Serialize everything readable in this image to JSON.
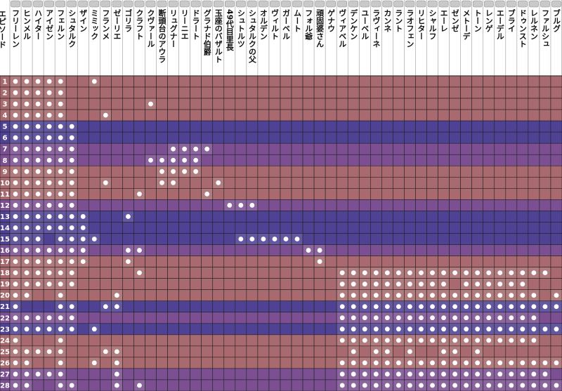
{
  "chart_data": {
    "type": "heatmap",
    "row_header": "エピソード",
    "characters": [
      "フリーレン",
      "ヒンメル",
      "ハイター",
      "アイゼン",
      "フェルン",
      "シュタルク",
      "ザイン",
      "ミミック",
      "フランメ",
      "ゼーリエ",
      "ゴリラ",
      "クラフト",
      "クヴァール",
      "断頭台のアウラ",
      "リュグナー",
      "リーニエ",
      "ドラート",
      "グラナド伯爵",
      "玉座のバザルト",
      "49代目里長",
      "シュトルツ",
      "シュタルクの父",
      "オルデン",
      "ヴィルト",
      "ガーベル",
      "ムート",
      "フォル爺",
      "頑固婆さん",
      "ゲナウ",
      "ヴィアベル",
      "デンケン",
      "ユーベル",
      "ラヴィーネ",
      "カンネ",
      "ラント",
      "ラオフェン",
      "リヒター",
      "シャルフ",
      "エーレ",
      "ゼンゼ",
      "メトーデ",
      "トーン",
      "レンゲ",
      "エーデル",
      "ブライ",
      "ドゥンスト",
      "レルネン",
      "ファルシュ",
      "ブルグ"
    ],
    "episodes": [
      "1",
      "2",
      "3",
      "4",
      "5",
      "6",
      "7",
      "8",
      "9",
      "10",
      "11",
      "12",
      "13",
      "14",
      "15",
      "16",
      "17",
      "18",
      "19",
      "20",
      "21",
      "22",
      "23",
      "24",
      "25",
      "26",
      "27",
      "28"
    ],
    "appearances": [
      [
        0,
        1,
        2,
        3,
        4,
        7
      ],
      [
        0,
        1,
        2,
        3,
        4
      ],
      [
        0,
        1,
        2,
        3,
        4,
        12
      ],
      [
        0,
        1,
        2,
        3,
        4,
        8
      ],
      [
        0,
        1,
        2,
        3,
        4,
        5
      ],
      [
        0,
        1,
        2,
        3,
        4,
        5
      ],
      [
        0,
        1,
        2,
        3,
        4,
        5,
        14,
        15,
        16,
        17
      ],
      [
        0,
        1,
        2,
        3,
        4,
        5,
        12,
        13,
        14,
        15,
        16
      ],
      [
        0,
        1,
        2,
        3,
        4,
        5,
        13,
        14,
        15,
        16
      ],
      [
        0,
        1,
        2,
        3,
        4,
        5,
        8,
        13,
        14,
        18
      ],
      [
        0,
        1,
        2,
        3,
        4,
        5,
        11,
        17
      ],
      [
        0,
        1,
        2,
        3,
        4,
        5,
        19,
        20,
        21
      ],
      [
        0,
        1,
        2,
        3,
        4,
        5,
        6,
        10
      ],
      [
        0,
        1,
        2,
        3,
        4,
        5,
        6
      ],
      [
        0,
        1,
        2,
        4,
        5,
        6,
        7,
        20,
        21,
        22,
        23,
        24,
        25
      ],
      [
        0,
        1,
        2,
        3,
        4,
        5,
        6,
        10,
        11,
        26,
        27
      ],
      [
        0,
        1,
        2,
        3,
        4,
        5,
        6,
        10,
        27
      ],
      [
        0,
        1,
        2,
        3,
        4,
        5,
        11,
        29,
        30,
        31,
        32,
        33,
        34,
        35,
        36,
        37,
        38,
        39,
        40,
        41,
        42,
        43,
        44,
        45,
        46,
        47
      ],
      [
        0,
        1,
        2,
        3,
        4,
        5,
        29,
        30,
        31,
        32,
        33,
        34,
        35,
        36,
        37,
        38,
        40,
        41,
        42,
        43,
        44,
        45
      ],
      [
        0,
        1,
        4,
        9,
        29,
        30,
        31,
        32,
        33,
        34,
        35,
        36,
        37,
        38,
        39,
        40,
        41,
        42,
        43,
        44,
        45,
        46,
        48
      ],
      [
        0,
        4,
        5,
        8,
        9,
        29,
        30,
        31,
        32,
        33,
        34,
        35,
        36,
        37,
        38,
        39,
        40,
        41,
        42,
        43,
        44,
        45,
        46,
        47,
        48
      ],
      [
        0,
        1,
        2,
        3,
        4,
        5,
        29,
        30,
        31,
        32,
        33,
        34,
        35,
        36,
        37,
        38,
        39,
        40,
        41,
        42,
        43,
        44,
        45,
        46
      ],
      [
        0,
        1,
        2,
        3,
        4,
        5,
        7,
        29,
        30,
        31,
        32,
        33,
        34,
        35,
        36,
        37,
        38,
        39,
        40,
        41,
        42,
        43,
        44,
        45,
        46,
        47,
        48
      ],
      [
        0,
        4,
        29,
        30,
        31,
        32,
        33,
        34,
        35,
        36,
        37,
        38,
        39,
        40,
        41,
        42,
        43,
        44,
        45,
        46
      ],
      [
        0,
        1,
        2,
        3,
        4,
        8,
        9,
        30,
        32,
        33,
        35,
        38,
        39,
        41
      ],
      [
        0,
        1,
        4,
        7,
        9,
        29,
        30,
        31,
        32,
        33,
        34,
        35,
        36,
        37,
        38,
        39,
        40,
        41,
        42,
        43,
        44,
        45,
        46,
        47,
        48
      ],
      [
        0,
        1,
        2,
        3,
        4,
        9,
        29,
        30,
        31,
        32,
        33,
        34,
        35,
        36,
        37,
        38,
        39,
        40,
        41,
        42,
        43,
        44,
        45,
        46,
        47
      ],
      [
        0,
        1,
        4,
        5,
        9,
        11,
        29,
        30,
        31,
        32,
        33,
        34,
        35,
        36,
        37,
        38,
        39,
        40,
        41,
        42,
        43,
        44,
        45,
        46,
        47,
        48
      ]
    ],
    "row_colors": [
      "#a86a6e",
      "#a86a6e",
      "#a86a6e",
      "#a86a6e",
      "#4f4294",
      "#4f4294",
      "#7c4f93",
      "#7c4f93",
      "#a86a6e",
      "#a86a6e",
      "#a86a6e",
      "#7c4f93",
      "#4f4294",
      "#4f4294",
      "#4f4294",
      "#7c4f93",
      "#a86a6e",
      "#a86a6e",
      "#a86a6e",
      "#a86a6e",
      "#4f4294",
      "#7c4f93",
      "#4f4294",
      "#a86a6e",
      "#a86a6e",
      "#a86a6e",
      "#7c4f93",
      "#7c4f93"
    ]
  }
}
